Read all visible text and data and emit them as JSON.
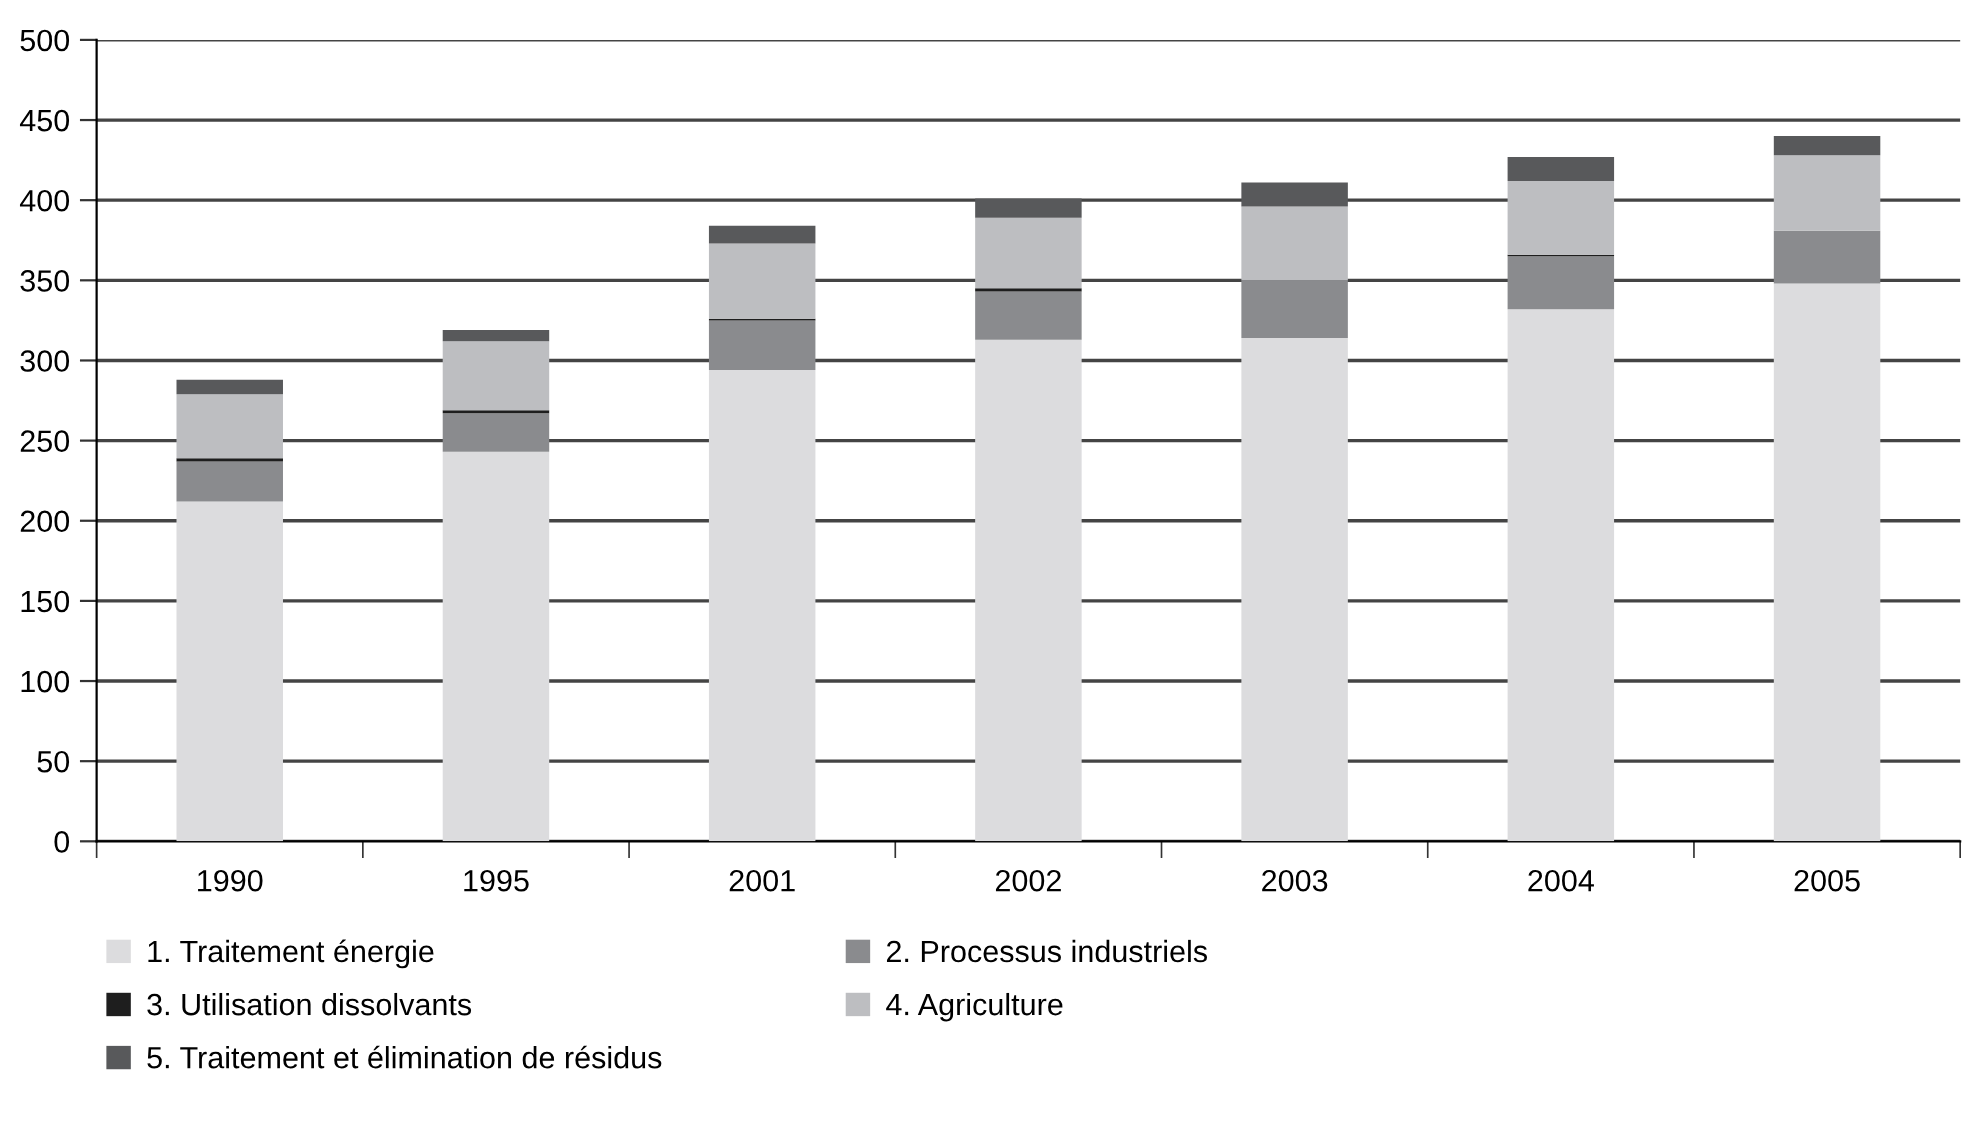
{
  "chart_data": {
    "type": "bar",
    "stacked": true,
    "categories": [
      "1990",
      "1995",
      "2001",
      "2002",
      "2003",
      "2004",
      "2005"
    ],
    "series": [
      {
        "name": "1. Traitement énergie",
        "color": "#dcdcde",
        "values": [
          212,
          243,
          294,
          313,
          314,
          332,
          348
        ]
      },
      {
        "name": "2. Processus industriels",
        "color": "#8a8b8e",
        "values": [
          25,
          24,
          31,
          30,
          36,
          33,
          33
        ]
      },
      {
        "name": "3. Utilisation dissolvants",
        "color": "#1e1e1e",
        "values": [
          2,
          2,
          1,
          2,
          null,
          1,
          null
        ]
      },
      {
        "name": "4. Agriculture",
        "color": "#bdbec1",
        "values": [
          40,
          43,
          47,
          44,
          46,
          46,
          47
        ]
      },
      {
        "name": "5. Traitement et élimination de résidus",
        "color": "#58595b",
        "values": [
          9,
          7,
          11,
          12,
          15,
          15,
          12
        ]
      }
    ],
    "ylim": [
      0,
      500
    ],
    "yticks": [
      0,
      50,
      100,
      150,
      200,
      250,
      300,
      350,
      400,
      450,
      500
    ],
    "grid": "y",
    "legend": "bottom"
  }
}
